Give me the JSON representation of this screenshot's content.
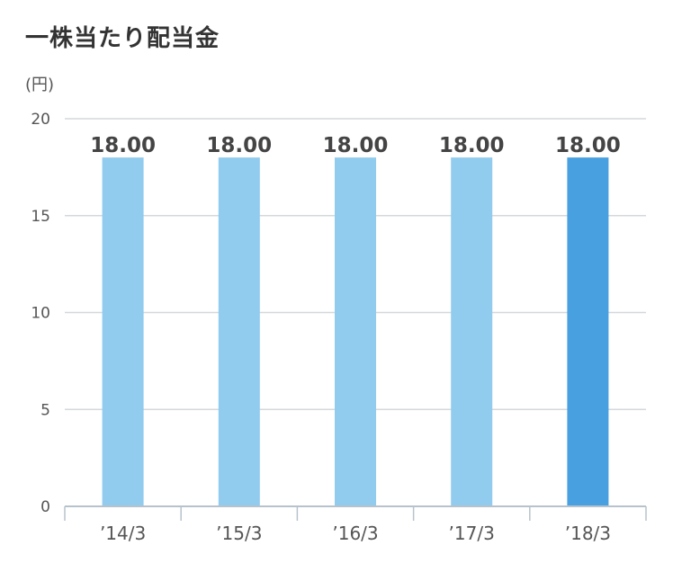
{
  "chart_data": {
    "type": "bar",
    "title": "一株当たり配当金",
    "unit": "(円)",
    "xlabel": "",
    "ylabel": "",
    "categories": [
      "’14/3",
      "’15/3",
      "’16/3",
      "’17/3",
      "’18/3"
    ],
    "values": [
      18,
      18,
      18,
      18,
      18
    ],
    "data_labels": [
      "18.00",
      "18.00",
      "18.00",
      "18.00",
      "18.00"
    ],
    "ylim": [
      0,
      20
    ],
    "yticks": [
      0,
      5,
      10,
      15,
      20
    ],
    "grid": true,
    "legend": "none",
    "colors": {
      "bar": "#91ccee",
      "highlight": "#48a0e0",
      "grid": "#d4d8dc",
      "axis": "#b8c2cc",
      "text": "#555555",
      "data_label": "#444444"
    },
    "highlight_index": 4
  }
}
